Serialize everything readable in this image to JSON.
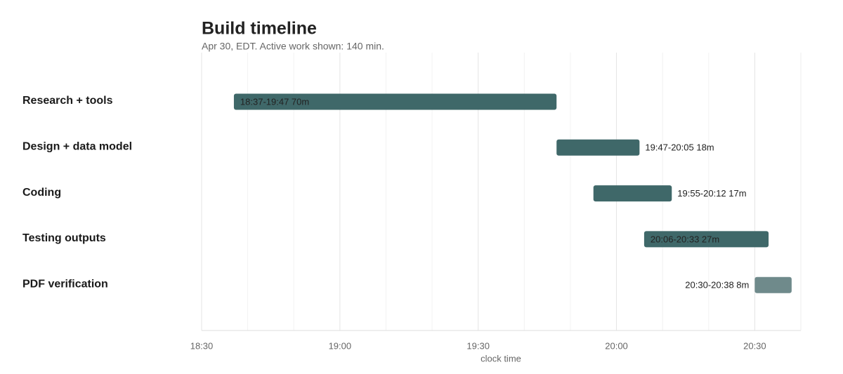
{
  "chart_data": {
    "type": "timeline",
    "title": "Build timeline",
    "subtitle": "Apr 30, EDT. Active work shown: 140 min.",
    "x_label": "clock time",
    "categories": [
      "Research + tools",
      "Design + data model",
      "Coding",
      "Testing outputs",
      "PDF verification"
    ],
    "start": [
      1117,
      1187,
      1195,
      1206,
      1230
    ],
    "end": [
      1187,
      1205,
      1212,
      1233,
      1238
    ],
    "value_labels": [
      "18:37-19:47  70m",
      "19:47-20:05  18m",
      "19:55-20:12  17m",
      "20:06-20:33  27m",
      "20:30-20:38  8m"
    ],
    "label_position": [
      "inside",
      "right",
      "right",
      "inside",
      "left"
    ],
    "colors": [
      "#3f6869",
      "#3f6869",
      "#3f6869",
      "#3f6869",
      "#6f8a8b"
    ],
    "xlim": [
      1110,
      1240
    ],
    "xticks": [
      {
        "value": 1110,
        "label": "18:30"
      },
      {
        "value": 1140,
        "label": "19:00"
      },
      {
        "value": 1170,
        "label": "19:30"
      },
      {
        "value": 1200,
        "label": "20:00"
      },
      {
        "value": 1230,
        "label": "20:30"
      }
    ],
    "minor_xticks": [
      1120,
      1130,
      1150,
      1160,
      1180,
      1190,
      1210,
      1220
    ],
    "grid": true
  }
}
